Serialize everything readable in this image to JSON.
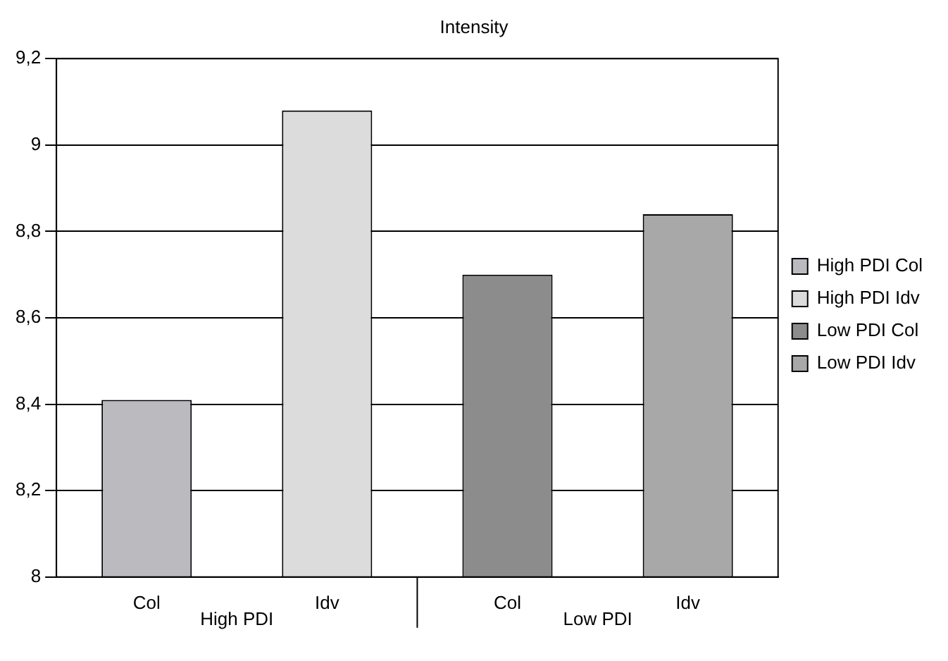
{
  "chart_data": {
    "type": "bar",
    "title": "Intensity",
    "categories": [
      "Col",
      "Idv",
      "Col",
      "Idv"
    ],
    "series": [
      {
        "name": "High PDI Col",
        "color": "#bbbbbf",
        "values": [
          8.41,
          null,
          null,
          null
        ]
      },
      {
        "name": "High PDI Idv",
        "color": "#dcdcdc",
        "values": [
          null,
          9.08,
          null,
          null
        ]
      },
      {
        "name": "Low PDI Col",
        "color": "#8c8c8c",
        "values": [
          null,
          null,
          8.7,
          null
        ]
      },
      {
        "name": "Low PDI Idv",
        "color": "#a8a8a8",
        "values": [
          null,
          null,
          null,
          8.84
        ]
      }
    ],
    "annotations": [
      "High PDI",
      "Low PDI"
    ],
    "ylim": [
      8,
      9.2
    ],
    "yticks": [
      {
        "value": 8,
        "label": "8"
      },
      {
        "value": 8.2,
        "label": "8,2"
      },
      {
        "value": 8.4,
        "label": "8,4"
      },
      {
        "value": 8.6,
        "label": "8,6"
      },
      {
        "value": 8.8,
        "label": "8,8"
      },
      {
        "value": 9,
        "label": "9"
      },
      {
        "value": 9.2,
        "label": "9,2"
      }
    ],
    "grid": "y",
    "legend": "right"
  }
}
